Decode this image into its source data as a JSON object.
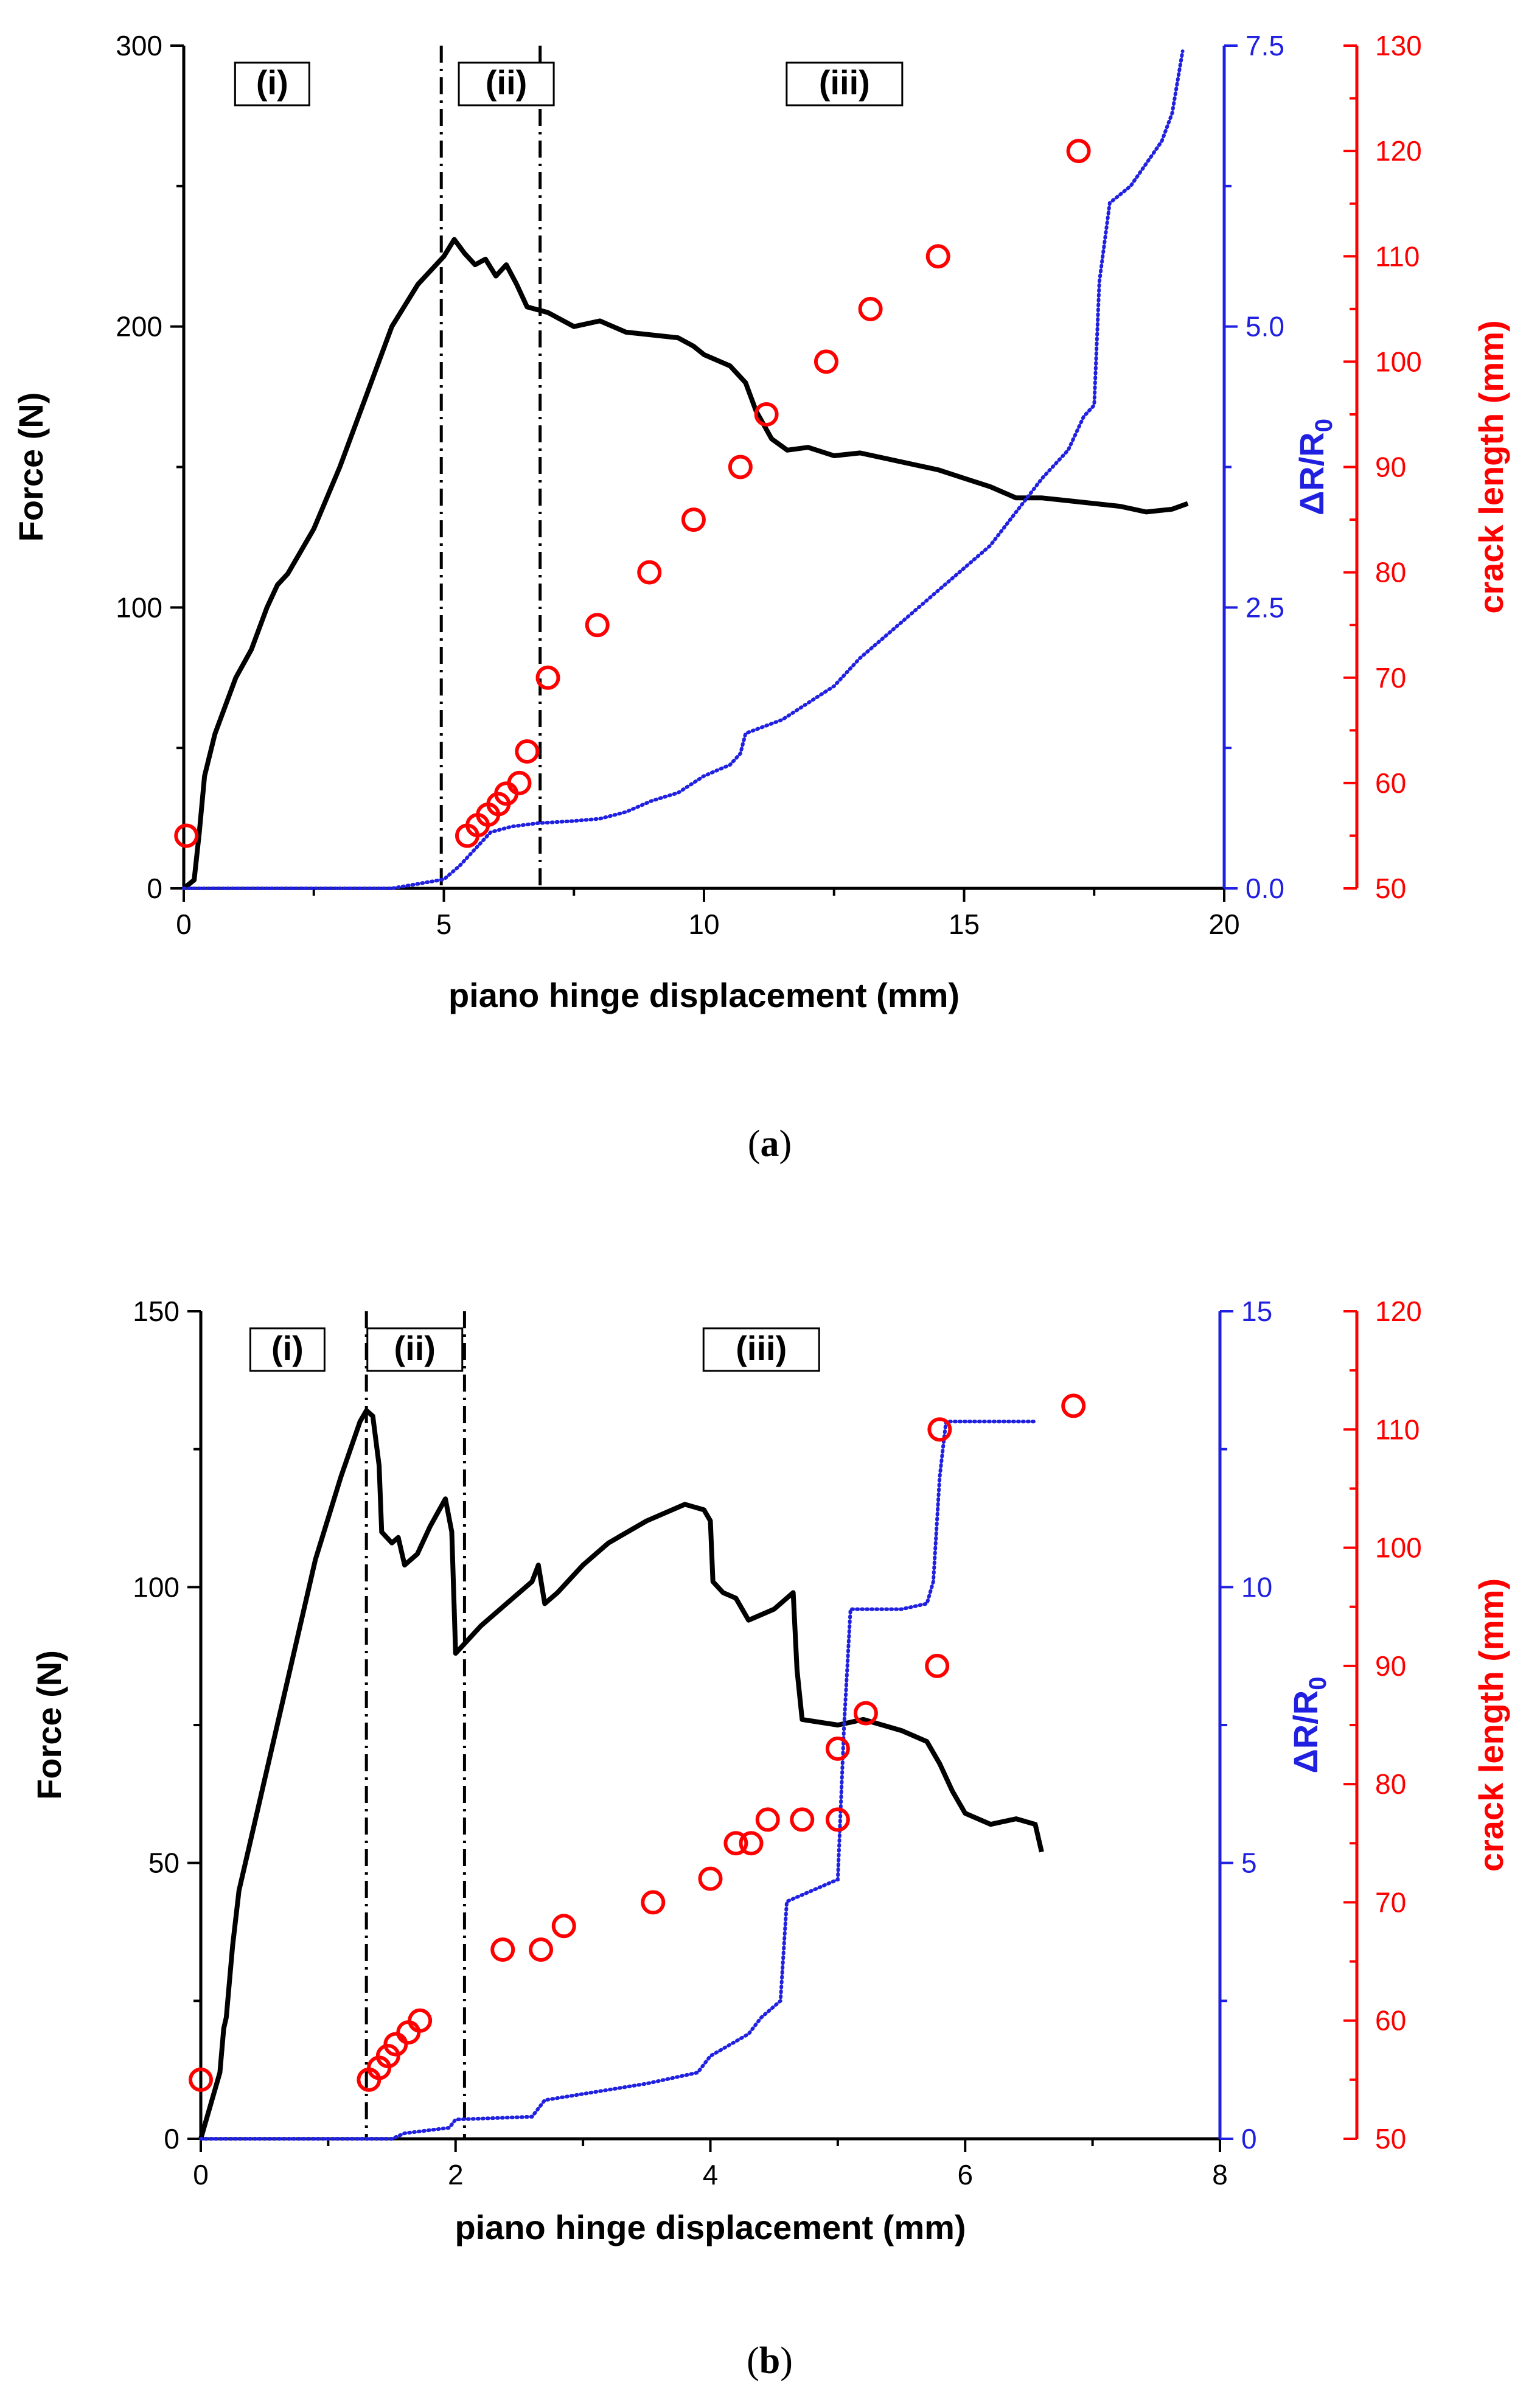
{
  "colors": {
    "force": "#000000",
    "resistance": "#2020e0",
    "crack": "#ff0000"
  },
  "chart_data": [
    {
      "id": "a",
      "type": "line",
      "caption": "a",
      "xlabel": "piano hinge displacement (mm)",
      "ylabel": "Force (N)",
      "y2label_main": "ΔR/R",
      "y2label_sub": "0",
      "y3label": "crack length (mm)",
      "xlim": [
        0,
        20
      ],
      "ylim": [
        0,
        300
      ],
      "y2lim": [
        0,
        7.5
      ],
      "y3lim": [
        50,
        130
      ],
      "xticks": [
        0,
        5,
        10,
        15,
        20
      ],
      "yticks": [
        0,
        100,
        200,
        300
      ],
      "y2ticks": [
        0,
        2.5,
        5,
        7.5
      ],
      "y2tick_labels": [
        "0.0",
        "2.5",
        "5.0",
        "7.5"
      ],
      "y3ticks": [
        50,
        60,
        70,
        80,
        90,
        100,
        110,
        120,
        130
      ],
      "regions": [
        "(i)",
        "(ii)",
        "(iii)"
      ],
      "region_x": [
        1.7,
        6.2,
        12.7
      ],
      "region_boundaries": [
        4.95,
        6.85
      ],
      "series": [
        {
          "name": "Force",
          "axis": "y",
          "x": [
            0,
            0.2,
            0.3,
            0.4,
            0.6,
            0.8,
            1.0,
            1.3,
            1.6,
            1.8,
            2.0,
            2.5,
            3.0,
            3.5,
            4.0,
            4.5,
            5.0,
            5.2,
            5.4,
            5.6,
            5.8,
            6.0,
            6.2,
            6.4,
            6.6,
            6.8,
            7.0,
            7.5,
            8.0,
            8.5,
            9.0,
            9.5,
            9.8,
            10.0,
            10.5,
            10.8,
            11.0,
            11.3,
            11.6,
            12.0,
            12.5,
            13.0,
            13.5,
            14.0,
            14.5,
            15.0,
            15.5,
            16.0,
            16.5,
            17.0,
            17.5,
            18.0,
            18.5,
            19.0,
            19.3
          ],
          "values": [
            0,
            3,
            20,
            40,
            55,
            65,
            75,
            85,
            100,
            108,
            112,
            128,
            150,
            175,
            200,
            215,
            225,
            231,
            226,
            222,
            224,
            218,
            222,
            215,
            207,
            206,
            205,
            200,
            202,
            198,
            197,
            196,
            193,
            190,
            186,
            180,
            170,
            160,
            156,
            157,
            154,
            155,
            153,
            151,
            149,
            146,
            143,
            139,
            139,
            138,
            137,
            136,
            134,
            135,
            137
          ]
        },
        {
          "name": "ΔR/R0",
          "axis": "y2",
          "x": [
            0,
            2,
            4,
            5.0,
            5.3,
            5.6,
            5.9,
            6.3,
            6.8,
            7.5,
            8.0,
            8.5,
            9.0,
            9.5,
            10.0,
            10.5,
            10.7,
            10.8,
            11.5,
            12.0,
            12.5,
            13.0,
            13.5,
            14.0,
            14.5,
            15.0,
            15.5,
            16.0,
            16.5,
            17.0,
            17.3,
            17.5,
            17.6,
            17.8,
            18.2,
            18.5,
            18.8,
            19.0,
            19.2
          ],
          "values": [
            0,
            0,
            0,
            0.08,
            0.2,
            0.35,
            0.5,
            0.55,
            0.58,
            0.6,
            0.62,
            0.68,
            0.78,
            0.85,
            1.0,
            1.1,
            1.2,
            1.38,
            1.5,
            1.65,
            1.8,
            2.05,
            2.25,
            2.45,
            2.65,
            2.85,
            3.05,
            3.35,
            3.65,
            3.9,
            4.2,
            4.3,
            5.4,
            6.1,
            6.25,
            6.45,
            6.65,
            6.9,
            7.45
          ]
        },
        {
          "name": "crack length",
          "axis": "y3",
          "x": [
            0.05,
            5.45,
            5.65,
            5.85,
            6.05,
            6.2,
            6.45,
            6.6,
            7.0,
            7.95,
            8.95,
            9.8,
            10.7,
            11.2,
            12.35,
            13.2,
            14.5,
            17.2
          ],
          "values": [
            55,
            55,
            56,
            57,
            58,
            59,
            60,
            63,
            70,
            75,
            80,
            85,
            90,
            95,
            100,
            105,
            110,
            120
          ]
        }
      ]
    },
    {
      "id": "b",
      "type": "line",
      "caption": "b",
      "xlabel": "piano hinge displacement (mm)",
      "ylabel": "Force (N)",
      "y2label_main": "ΔR/R",
      "y2label_sub": "0",
      "y3label": "crack length (mm)",
      "xlim": [
        0,
        8
      ],
      "ylim": [
        0,
        150
      ],
      "y2lim": [
        0,
        15
      ],
      "y3lim": [
        50,
        120
      ],
      "xticks": [
        0,
        2,
        4,
        6,
        8
      ],
      "yticks": [
        0,
        50,
        100,
        150
      ],
      "y2ticks": [
        0,
        5,
        10,
        15
      ],
      "y2tick_labels": [
        "0",
        "5",
        "10",
        "15"
      ],
      "y3ticks": [
        50,
        60,
        70,
        80,
        90,
        100,
        110,
        120
      ],
      "regions": [
        "(i)",
        "(ii)",
        "(iii)"
      ],
      "region_x": [
        0.68,
        1.68,
        4.4
      ],
      "region_boundaries": [
        1.3,
        2.07
      ],
      "series": [
        {
          "name": "Force",
          "axis": "y",
          "x": [
            0,
            0.1,
            0.15,
            0.18,
            0.2,
            0.25,
            0.3,
            0.4,
            0.5,
            0.7,
            0.9,
            1.1,
            1.25,
            1.3,
            1.35,
            1.4,
            1.42,
            1.5,
            1.55,
            1.6,
            1.7,
            1.8,
            1.92,
            1.97,
            2.0,
            2.2,
            2.4,
            2.6,
            2.65,
            2.7,
            2.8,
            3.0,
            3.2,
            3.5,
            3.8,
            3.95,
            4.0,
            4.02,
            4.1,
            4.2,
            4.3,
            4.5,
            4.65,
            4.68,
            4.72,
            5.0,
            5.2,
            5.5,
            5.7,
            5.8,
            5.9,
            6.0,
            6.2,
            6.4,
            6.55,
            6.6
          ],
          "values": [
            0,
            8,
            12,
            20,
            22,
            35,
            45,
            55,
            65,
            85,
            105,
            120,
            130,
            132,
            131,
            122,
            110,
            108,
            109,
            104,
            106,
            111,
            116,
            110,
            88,
            93,
            97,
            101,
            104,
            97,
            99,
            104,
            108,
            112,
            115,
            114,
            112,
            101,
            99,
            98,
            94,
            96,
            99,
            85,
            76,
            75,
            76,
            74,
            72,
            68,
            63,
            59,
            57,
            58,
            57,
            52
          ]
        },
        {
          "name": "ΔR/R0",
          "axis": "y2",
          "x": [
            0,
            1.5,
            1.6,
            1.95,
            2.0,
            2.6,
            2.7,
            3.5,
            3.9,
            4.0,
            4.3,
            4.4,
            4.55,
            4.6,
            4.9,
            5.0,
            5.05,
            5.1,
            5.5,
            5.7,
            5.75,
            5.8,
            5.85,
            6.55
          ],
          "values": [
            0,
            0,
            0.1,
            0.2,
            0.35,
            0.4,
            0.7,
            1.0,
            1.2,
            1.5,
            1.9,
            2.2,
            2.5,
            4.3,
            4.6,
            4.7,
            7.5,
            9.6,
            9.6,
            9.7,
            10.1,
            12.0,
            13.0,
            13.0
          ]
        },
        {
          "name": "crack length",
          "axis": "y3",
          "x": [
            0,
            1.32,
            1.4,
            1.47,
            1.53,
            1.63,
            1.72,
            2.37,
            2.67,
            2.85,
            3.55,
            4.0,
            4.2,
            4.32,
            4.45,
            4.72,
            5.0,
            5.0,
            5.22,
            5.78,
            5.8,
            6.85
          ],
          "values": [
            55,
            55,
            56,
            57,
            58,
            59,
            60,
            66,
            66,
            68,
            70,
            72,
            75,
            75,
            77,
            77,
            77,
            83,
            86,
            90,
            110,
            112
          ]
        }
      ]
    }
  ]
}
